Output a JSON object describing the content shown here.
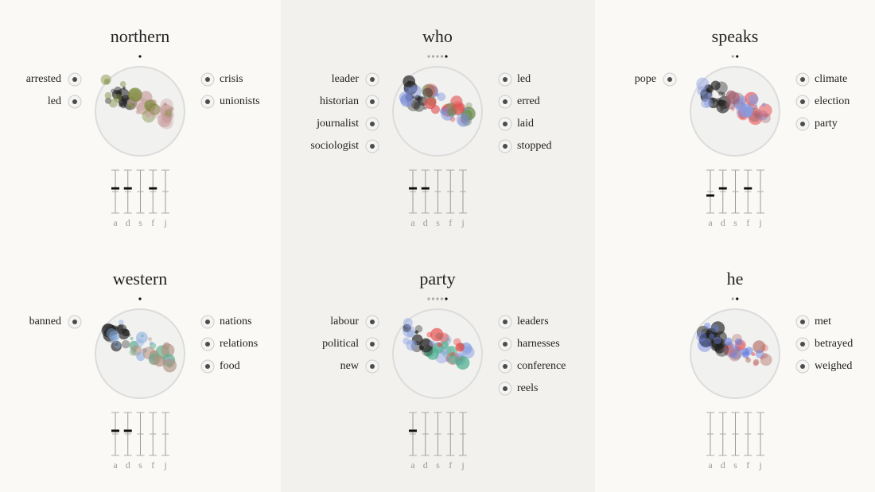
{
  "panels": [
    {
      "title": "northern",
      "left": [
        "arrested",
        "led"
      ],
      "right": [
        "crisis",
        "unionists"
      ],
      "keys": [
        "a",
        "d",
        "s",
        "f",
        "j"
      ]
    },
    {
      "title": "who",
      "left": [
        "leader",
        "historian",
        "journalist",
        "sociologist"
      ],
      "right": [
        "led",
        "erred",
        "laid",
        "stopped"
      ],
      "keys": [
        "a",
        "d",
        "s",
        "f",
        "j"
      ]
    },
    {
      "title": "speaks",
      "left": [
        "pope"
      ],
      "right": [
        "climate",
        "election",
        "party"
      ],
      "keys": [
        "a",
        "d",
        "s",
        "f",
        "j"
      ]
    },
    {
      "title": "western",
      "left": [
        "banned"
      ],
      "right": [
        "nations",
        "relations",
        "food"
      ],
      "keys": [
        "a",
        "d",
        "s",
        "f",
        "j"
      ]
    },
    {
      "title": "party",
      "left": [
        "labour",
        "political",
        "new"
      ],
      "right": [
        "leaders",
        "harnesses",
        "conference",
        "reels"
      ],
      "keys": [
        "a",
        "d",
        "s",
        "f",
        "j"
      ]
    },
    {
      "title": "he",
      "left": [],
      "right": [
        "met",
        "betrayed",
        "weighed"
      ],
      "keys": [
        "a",
        "d",
        "s",
        "f",
        "j"
      ]
    }
  ]
}
